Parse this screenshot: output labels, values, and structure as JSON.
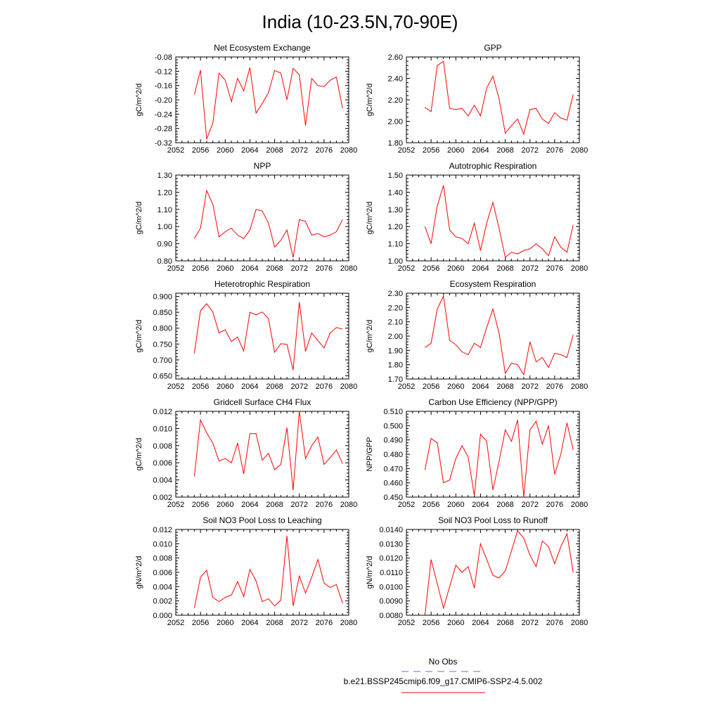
{
  "figure": {
    "title": "India (10-23.5N,70-90E)"
  },
  "legend": {
    "entries": [
      {
        "name": "No Obs",
        "color": "#6666ff",
        "style": "dashed"
      },
      {
        "name": "b.e21.BSSP245cmip6.f09_g17.CMIP6-SSP2-4.5.002",
        "color": "#ff0000",
        "style": "solid"
      }
    ]
  },
  "colors": {
    "series": "#ff0000",
    "obs": "#6666ff"
  },
  "chart_data": [
    {
      "type": "line",
      "title": "Net Ecosystem Exchange",
      "ylabel": "gC/m^2/d",
      "xlim": [
        2052,
        2080
      ],
      "xticks": [
        "2052",
        "2056",
        "2060",
        "2064",
        "2068",
        "2072",
        "2076",
        "2080"
      ],
      "ylim": [
        -0.32,
        -0.08
      ],
      "yticks": [
        "-0.08",
        "-0.12",
        "-0.16",
        "-0.20",
        "-0.24",
        "-0.28",
        "-0.32"
      ],
      "x": [
        2055,
        2056,
        2057,
        2058,
        2059,
        2060,
        2061,
        2062,
        2063,
        2064,
        2065,
        2066,
        2067,
        2068,
        2069,
        2070,
        2071,
        2072,
        2073,
        2074,
        2075,
        2076,
        2077,
        2078,
        2079
      ],
      "values": [
        -0.185,
        -0.117,
        -0.31,
        -0.265,
        -0.125,
        -0.145,
        -0.205,
        -0.14,
        -0.175,
        -0.11,
        -0.237,
        -0.21,
        -0.18,
        -0.118,
        -0.125,
        -0.2,
        -0.112,
        -0.13,
        -0.272,
        -0.14,
        -0.16,
        -0.163,
        -0.145,
        -0.136,
        -0.223
      ]
    },
    {
      "type": "line",
      "title": "GPP",
      "ylabel": "gC/m^2/d",
      "xlim": [
        2052,
        2080
      ],
      "xticks": [
        "2052",
        "2056",
        "2060",
        "2064",
        "2068",
        "2072",
        "2076",
        "2080"
      ],
      "ylim": [
        1.8,
        2.6
      ],
      "yticks": [
        "2.60",
        "2.40",
        "2.20",
        "2.00",
        "1.80"
      ],
      "x": [
        2055,
        2056,
        2057,
        2058,
        2059,
        2060,
        2061,
        2062,
        2063,
        2064,
        2065,
        2066,
        2067,
        2068,
        2069,
        2070,
        2071,
        2072,
        2073,
        2074,
        2075,
        2076,
        2077,
        2078,
        2079
      ],
      "values": [
        2.13,
        2.09,
        2.52,
        2.56,
        2.12,
        2.11,
        2.12,
        2.05,
        2.15,
        2.05,
        2.31,
        2.42,
        2.21,
        1.89,
        1.96,
        2.02,
        1.88,
        2.11,
        2.12,
        2.02,
        1.98,
        2.08,
        2.03,
        2.01,
        2.25
      ]
    },
    {
      "type": "line",
      "title": "NPP",
      "ylabel": "gC/m^2/d",
      "xlim": [
        2052,
        2080
      ],
      "xticks": [
        "2052",
        "2056",
        "2060",
        "2064",
        "2068",
        "2072",
        "2076",
        "2080"
      ],
      "ylim": [
        0.8,
        1.3
      ],
      "yticks": [
        "1.30",
        "1.20",
        "1.10",
        "1.00",
        "0.90",
        "0.80"
      ],
      "x": [
        2055,
        2056,
        2057,
        2058,
        2059,
        2060,
        2061,
        2062,
        2063,
        2064,
        2065,
        2066,
        2067,
        2068,
        2069,
        2070,
        2071,
        2072,
        2073,
        2074,
        2075,
        2076,
        2077,
        2078,
        2079
      ],
      "values": [
        0.93,
        0.99,
        1.21,
        1.13,
        0.94,
        0.97,
        0.99,
        0.95,
        0.93,
        0.98,
        1.1,
        1.09,
        1.02,
        0.88,
        0.92,
        0.98,
        0.82,
        1.04,
        1.03,
        0.95,
        0.96,
        0.94,
        0.95,
        0.97,
        1.04
      ]
    },
    {
      "type": "line",
      "title": "Autotrophic Respiration",
      "ylabel": "gC/m^2/d",
      "xlim": [
        2052,
        2080
      ],
      "xticks": [
        "2052",
        "2056",
        "2060",
        "2064",
        "2068",
        "2072",
        "2076",
        "2080"
      ],
      "ylim": [
        1.0,
        1.5
      ],
      "yticks": [
        "1.50",
        "1.40",
        "1.30",
        "1.20",
        "1.10",
        "1.00"
      ],
      "x": [
        2055,
        2056,
        2057,
        2058,
        2059,
        2060,
        2061,
        2062,
        2063,
        2064,
        2065,
        2066,
        2067,
        2068,
        2069,
        2070,
        2071,
        2072,
        2073,
        2074,
        2075,
        2076,
        2077,
        2078,
        2079
      ],
      "values": [
        1.2,
        1.1,
        1.32,
        1.44,
        1.18,
        1.14,
        1.13,
        1.1,
        1.22,
        1.06,
        1.22,
        1.34,
        1.19,
        1.02,
        1.05,
        1.04,
        1.06,
        1.07,
        1.1,
        1.07,
        1.03,
        1.14,
        1.08,
        1.05,
        1.21
      ]
    },
    {
      "type": "line",
      "title": "Heterotrophic Respiration",
      "ylabel": "gC/m^2/d",
      "xlim": [
        2052,
        2080
      ],
      "xticks": [
        "2052",
        "2056",
        "2060",
        "2064",
        "2068",
        "2072",
        "2076",
        "2080"
      ],
      "ylim": [
        0.64,
        0.91
      ],
      "yticks": [
        "0.900",
        "0.850",
        "0.800",
        "0.750",
        "0.700",
        "0.650"
      ],
      "ytickvalues": [
        0.9,
        0.85,
        0.8,
        0.75,
        0.7,
        0.65
      ],
      "x": [
        2055,
        2056,
        2057,
        2058,
        2059,
        2060,
        2061,
        2062,
        2063,
        2064,
        2065,
        2066,
        2067,
        2068,
        2069,
        2070,
        2071,
        2072,
        2073,
        2074,
        2075,
        2076,
        2077,
        2078,
        2079
      ],
      "values": [
        0.721,
        0.855,
        0.877,
        0.851,
        0.785,
        0.795,
        0.758,
        0.772,
        0.728,
        0.85,
        0.842,
        0.851,
        0.83,
        0.724,
        0.751,
        0.749,
        0.668,
        0.882,
        0.727,
        0.785,
        0.761,
        0.738,
        0.785,
        0.802,
        0.797
      ]
    },
    {
      "type": "line",
      "title": "Ecosystem Respiration",
      "ylabel": "gC/m^2/d",
      "xlim": [
        2052,
        2080
      ],
      "xticks": [
        "2052",
        "2056",
        "2060",
        "2064",
        "2068",
        "2072",
        "2076",
        "2080"
      ],
      "ylim": [
        1.7,
        2.3
      ],
      "yticks": [
        "2.30",
        "2.20",
        "2.10",
        "2.00",
        "1.90",
        "1.80",
        "1.70"
      ],
      "x": [
        2055,
        2056,
        2057,
        2058,
        2059,
        2060,
        2061,
        2062,
        2063,
        2064,
        2065,
        2066,
        2067,
        2068,
        2069,
        2070,
        2071,
        2072,
        2073,
        2074,
        2075,
        2076,
        2077,
        2078,
        2079
      ],
      "values": [
        1.92,
        1.95,
        2.19,
        2.28,
        1.97,
        1.94,
        1.89,
        1.87,
        1.95,
        1.92,
        2.06,
        2.19,
        2.02,
        1.74,
        1.81,
        1.8,
        1.73,
        1.96,
        1.82,
        1.85,
        1.78,
        1.88,
        1.87,
        1.85,
        2.01
      ]
    },
    {
      "type": "line",
      "title": "Gridcell Surface CH4 Flux",
      "ylabel": "gC/m^2/d",
      "xlim": [
        2052,
        2080
      ],
      "xticks": [
        "2052",
        "2056",
        "2060",
        "2064",
        "2068",
        "2072",
        "2076",
        "2080"
      ],
      "ylim": [
        0.002,
        0.012
      ],
      "yticks": [
        "0.012",
        "0.010",
        "0.008",
        "0.006",
        "0.004",
        "0.002"
      ],
      "x": [
        2055,
        2056,
        2057,
        2058,
        2059,
        2060,
        2061,
        2062,
        2063,
        2064,
        2065,
        2066,
        2067,
        2068,
        2069,
        2070,
        2071,
        2072,
        2073,
        2074,
        2075,
        2076,
        2077,
        2078,
        2079
      ],
      "values": [
        0.0044,
        0.011,
        0.0095,
        0.0083,
        0.0062,
        0.0065,
        0.006,
        0.0083,
        0.0047,
        0.0094,
        0.0094,
        0.0063,
        0.0071,
        0.0052,
        0.0058,
        0.0101,
        0.0028,
        0.012,
        0.0065,
        0.008,
        0.009,
        0.0058,
        0.0066,
        0.0075,
        0.0059
      ]
    },
    {
      "type": "line",
      "title": "Carbon Use Efficiency (NPP/GPP)",
      "ylabel": "NPP/GPP",
      "xlim": [
        2052,
        2080
      ],
      "xticks": [
        "2052",
        "2056",
        "2060",
        "2064",
        "2068",
        "2072",
        "2076",
        "2080"
      ],
      "ylim": [
        0.45,
        0.51
      ],
      "yticks": [
        "0.510",
        "0.500",
        "0.490",
        "0.480",
        "0.470",
        "0.460",
        "0.450"
      ],
      "x": [
        2055,
        2056,
        2057,
        2058,
        2059,
        2060,
        2061,
        2062,
        2063,
        2064,
        2065,
        2066,
        2067,
        2068,
        2069,
        2070,
        2071,
        2072,
        2073,
        2074,
        2075,
        2076,
        2077,
        2078,
        2079
      ],
      "values": [
        0.469,
        0.491,
        0.488,
        0.46,
        0.462,
        0.477,
        0.486,
        0.478,
        0.451,
        0.494,
        0.489,
        0.455,
        0.475,
        0.497,
        0.489,
        0.504,
        0.45,
        0.497,
        0.503,
        0.487,
        0.5,
        0.466,
        0.48,
        0.502,
        0.483
      ]
    },
    {
      "type": "line",
      "title": "Soil NO3 Pool Loss to Leaching",
      "ylabel": "gN/m^2/d",
      "xlim": [
        2052,
        2080
      ],
      "xticks": [
        "2052",
        "2056",
        "2060",
        "2064",
        "2068",
        "2072",
        "2076",
        "2080"
      ],
      "ylim": [
        0.0,
        0.012
      ],
      "yticks": [
        "0.012",
        "0.010",
        "0.008",
        "0.006",
        "0.004",
        "0.002",
        "0.000"
      ],
      "x": [
        2055,
        2056,
        2057,
        2058,
        2059,
        2060,
        2061,
        2062,
        2063,
        2064,
        2065,
        2066,
        2067,
        2068,
        2069,
        2070,
        2071,
        2072,
        2073,
        2074,
        2075,
        2076,
        2077,
        2078,
        2079
      ],
      "values": [
        0.001,
        0.0053,
        0.0063,
        0.0025,
        0.0019,
        0.0025,
        0.0028,
        0.0047,
        0.0026,
        0.0064,
        0.0048,
        0.0019,
        0.0023,
        0.0013,
        0.0021,
        0.0111,
        0.0013,
        0.0055,
        0.0031,
        0.0053,
        0.0078,
        0.0045,
        0.0039,
        0.0043,
        0.0017
      ]
    },
    {
      "type": "line",
      "title": "Soil NO3 Pool Loss to Runoff",
      "ylabel": "gN/m^2/d",
      "xlim": [
        2052,
        2080
      ],
      "xticks": [
        "2052",
        "2056",
        "2060",
        "2064",
        "2068",
        "2072",
        "2076",
        "2080"
      ],
      "ylim": [
        0.008,
        0.014
      ],
      "yticks": [
        "0.0140",
        "0.0130",
        "0.0120",
        "0.0110",
        "0.0100",
        "0.0090",
        "0.0080"
      ],
      "x": [
        2055,
        2056,
        2057,
        2058,
        2059,
        2060,
        2061,
        2062,
        2063,
        2064,
        2065,
        2066,
        2067,
        2068,
        2069,
        2070,
        2071,
        2072,
        2073,
        2074,
        2075,
        2076,
        2077,
        2078,
        2079
      ],
      "values": [
        0.008,
        0.0119,
        0.0102,
        0.0085,
        0.01,
        0.0115,
        0.011,
        0.0114,
        0.0099,
        0.013,
        0.0119,
        0.0108,
        0.0106,
        0.0111,
        0.0125,
        0.0139,
        0.0134,
        0.0122,
        0.0114,
        0.0132,
        0.0128,
        0.0116,
        0.0128,
        0.0137,
        0.011
      ]
    }
  ]
}
